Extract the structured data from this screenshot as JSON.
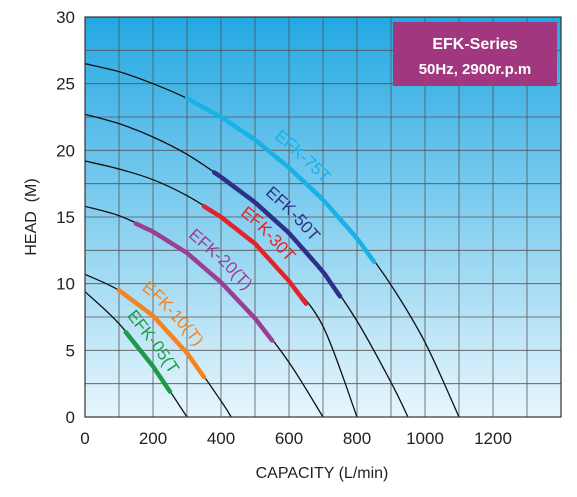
{
  "chart_data": {
    "type": "line",
    "title": "EFK-Series",
    "subtitle": "50Hz, 2900r.p.m",
    "xlabel": "CAPACITY (L/min)",
    "ylabel": "HEAD  (M)",
    "xlim": [
      0,
      1400
    ],
    "ylim": [
      0,
      30
    ],
    "xticks": [
      0,
      200,
      400,
      600,
      800,
      1000,
      1200
    ],
    "yticks": [
      0,
      5,
      10,
      15,
      20,
      25,
      30
    ],
    "grid": true,
    "x_minor_step": 100,
    "y_minor_step": 2.5,
    "series": [
      {
        "name": "EFK-05(T)",
        "x": [
          0,
          100,
          200,
          300
        ],
        "y": [
          9.4,
          7.0,
          3.8,
          0
        ],
        "highlight": {
          "x": [
            120,
            250
          ],
          "color": "#1f9a48"
        }
      },
      {
        "name": "EFK-10(T)",
        "x": [
          0,
          100,
          200,
          300,
          400,
          430
        ],
        "y": [
          10.7,
          9.5,
          7.6,
          4.8,
          1.2,
          0
        ],
        "highlight": {
          "x": [
            100,
            350
          ],
          "color": "#f5831f"
        }
      },
      {
        "name": "EFK-20(T)",
        "x": [
          0,
          100,
          200,
          300,
          400,
          500,
          600,
          700
        ],
        "y": [
          15.8,
          15.1,
          13.9,
          12.3,
          10.1,
          7.4,
          4.1,
          0
        ],
        "highlight": {
          "x": [
            150,
            550
          ],
          "color": "#9b3f92"
        }
      },
      {
        "name": "EFK-30T",
        "x": [
          0,
          100,
          200,
          300,
          400,
          500,
          600,
          700,
          800
        ],
        "y": [
          19.2,
          18.6,
          17.8,
          16.6,
          15.0,
          13.0,
          10.2,
          6.8,
          0
        ],
        "highlight": {
          "x": [
            350,
            650
          ],
          "color": "#e2232a"
        }
      },
      {
        "name": "EFK-50T",
        "x": [
          0,
          100,
          200,
          300,
          400,
          500,
          600,
          700,
          800,
          900,
          950
        ],
        "y": [
          22.7,
          22.0,
          21.0,
          19.7,
          18.0,
          16.1,
          13.8,
          10.9,
          7.2,
          2.6,
          0
        ],
        "highlight": {
          "x": [
            380,
            750
          ],
          "color": "#2e3088"
        }
      },
      {
        "name": "EFK-75T",
        "x": [
          0,
          100,
          200,
          300,
          400,
          500,
          600,
          700,
          800,
          900,
          1000,
          1100
        ],
        "y": [
          26.5,
          25.9,
          25.0,
          23.9,
          22.5,
          20.8,
          18.7,
          16.3,
          13.4,
          9.9,
          5.6,
          0
        ],
        "highlight": {
          "x": [
            300,
            850
          ],
          "color": "#19b1e6"
        }
      }
    ],
    "base_line_color": "#111111",
    "plot_gradient": [
      "#23a8e2",
      "#e8f6fd"
    ],
    "grid_color": "#555555",
    "title_box_color": "#a1377f"
  }
}
